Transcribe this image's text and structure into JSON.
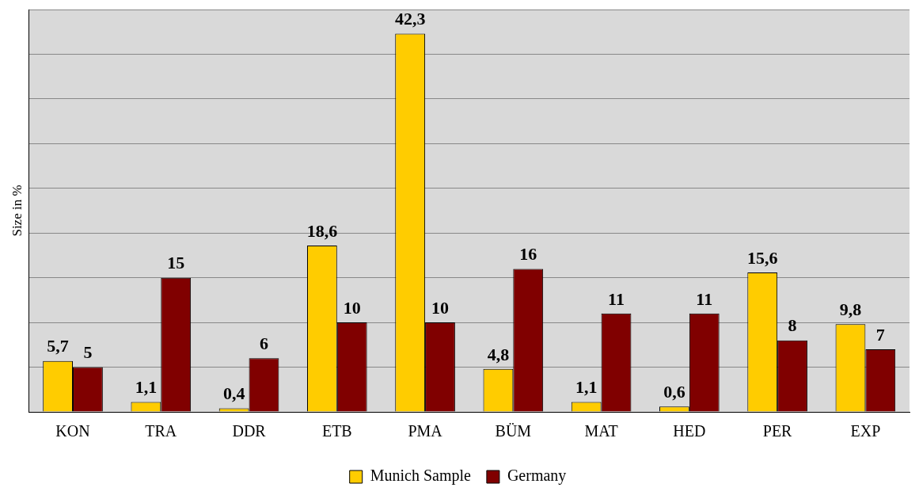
{
  "chart_data": {
    "type": "bar",
    "ylabel": "Size in %",
    "categories": [
      "KON",
      "TRA",
      "DDR",
      "ETB",
      "PMA",
      "BÜM",
      "MAT",
      "HED",
      "PER",
      "EXP"
    ],
    "series": [
      {
        "name": "Munich Sample",
        "color": "#ffcc00",
        "values": [
          5.7,
          1.1,
          0.4,
          18.6,
          42.3,
          4.8,
          1.1,
          0.6,
          15.6,
          9.8
        ],
        "value_labels": [
          "5,7",
          "1,1",
          "0,4",
          "18,6",
          "42,3",
          "4,8",
          "1,1",
          "0,6",
          "15,6",
          "9,8"
        ]
      },
      {
        "name": "Germany",
        "color": "#800000",
        "values": [
          5,
          15,
          6,
          10,
          10,
          16,
          11,
          11,
          8,
          7
        ],
        "value_labels": [
          "5",
          "15",
          "6",
          "10",
          "10",
          "16",
          "11",
          "11",
          "8",
          "7"
        ]
      }
    ],
    "ylim": [
      0,
      45
    ],
    "yticks": [
      {
        "value": 0,
        "label": null
      },
      {
        "value": 5,
        "label": null
      },
      {
        "value": 10,
        "label": null
      },
      {
        "value": 15,
        "label": null
      },
      {
        "value": 20,
        "label": null
      },
      {
        "value": 25,
        "label": null
      },
      {
        "value": 30,
        "label": null
      },
      {
        "value": 35,
        "label": null
      },
      {
        "value": 40,
        "label": null
      },
      {
        "value": 45,
        "label": null
      }
    ],
    "tick_labels": "x",
    "grid": "y",
    "legend": "bottom"
  }
}
